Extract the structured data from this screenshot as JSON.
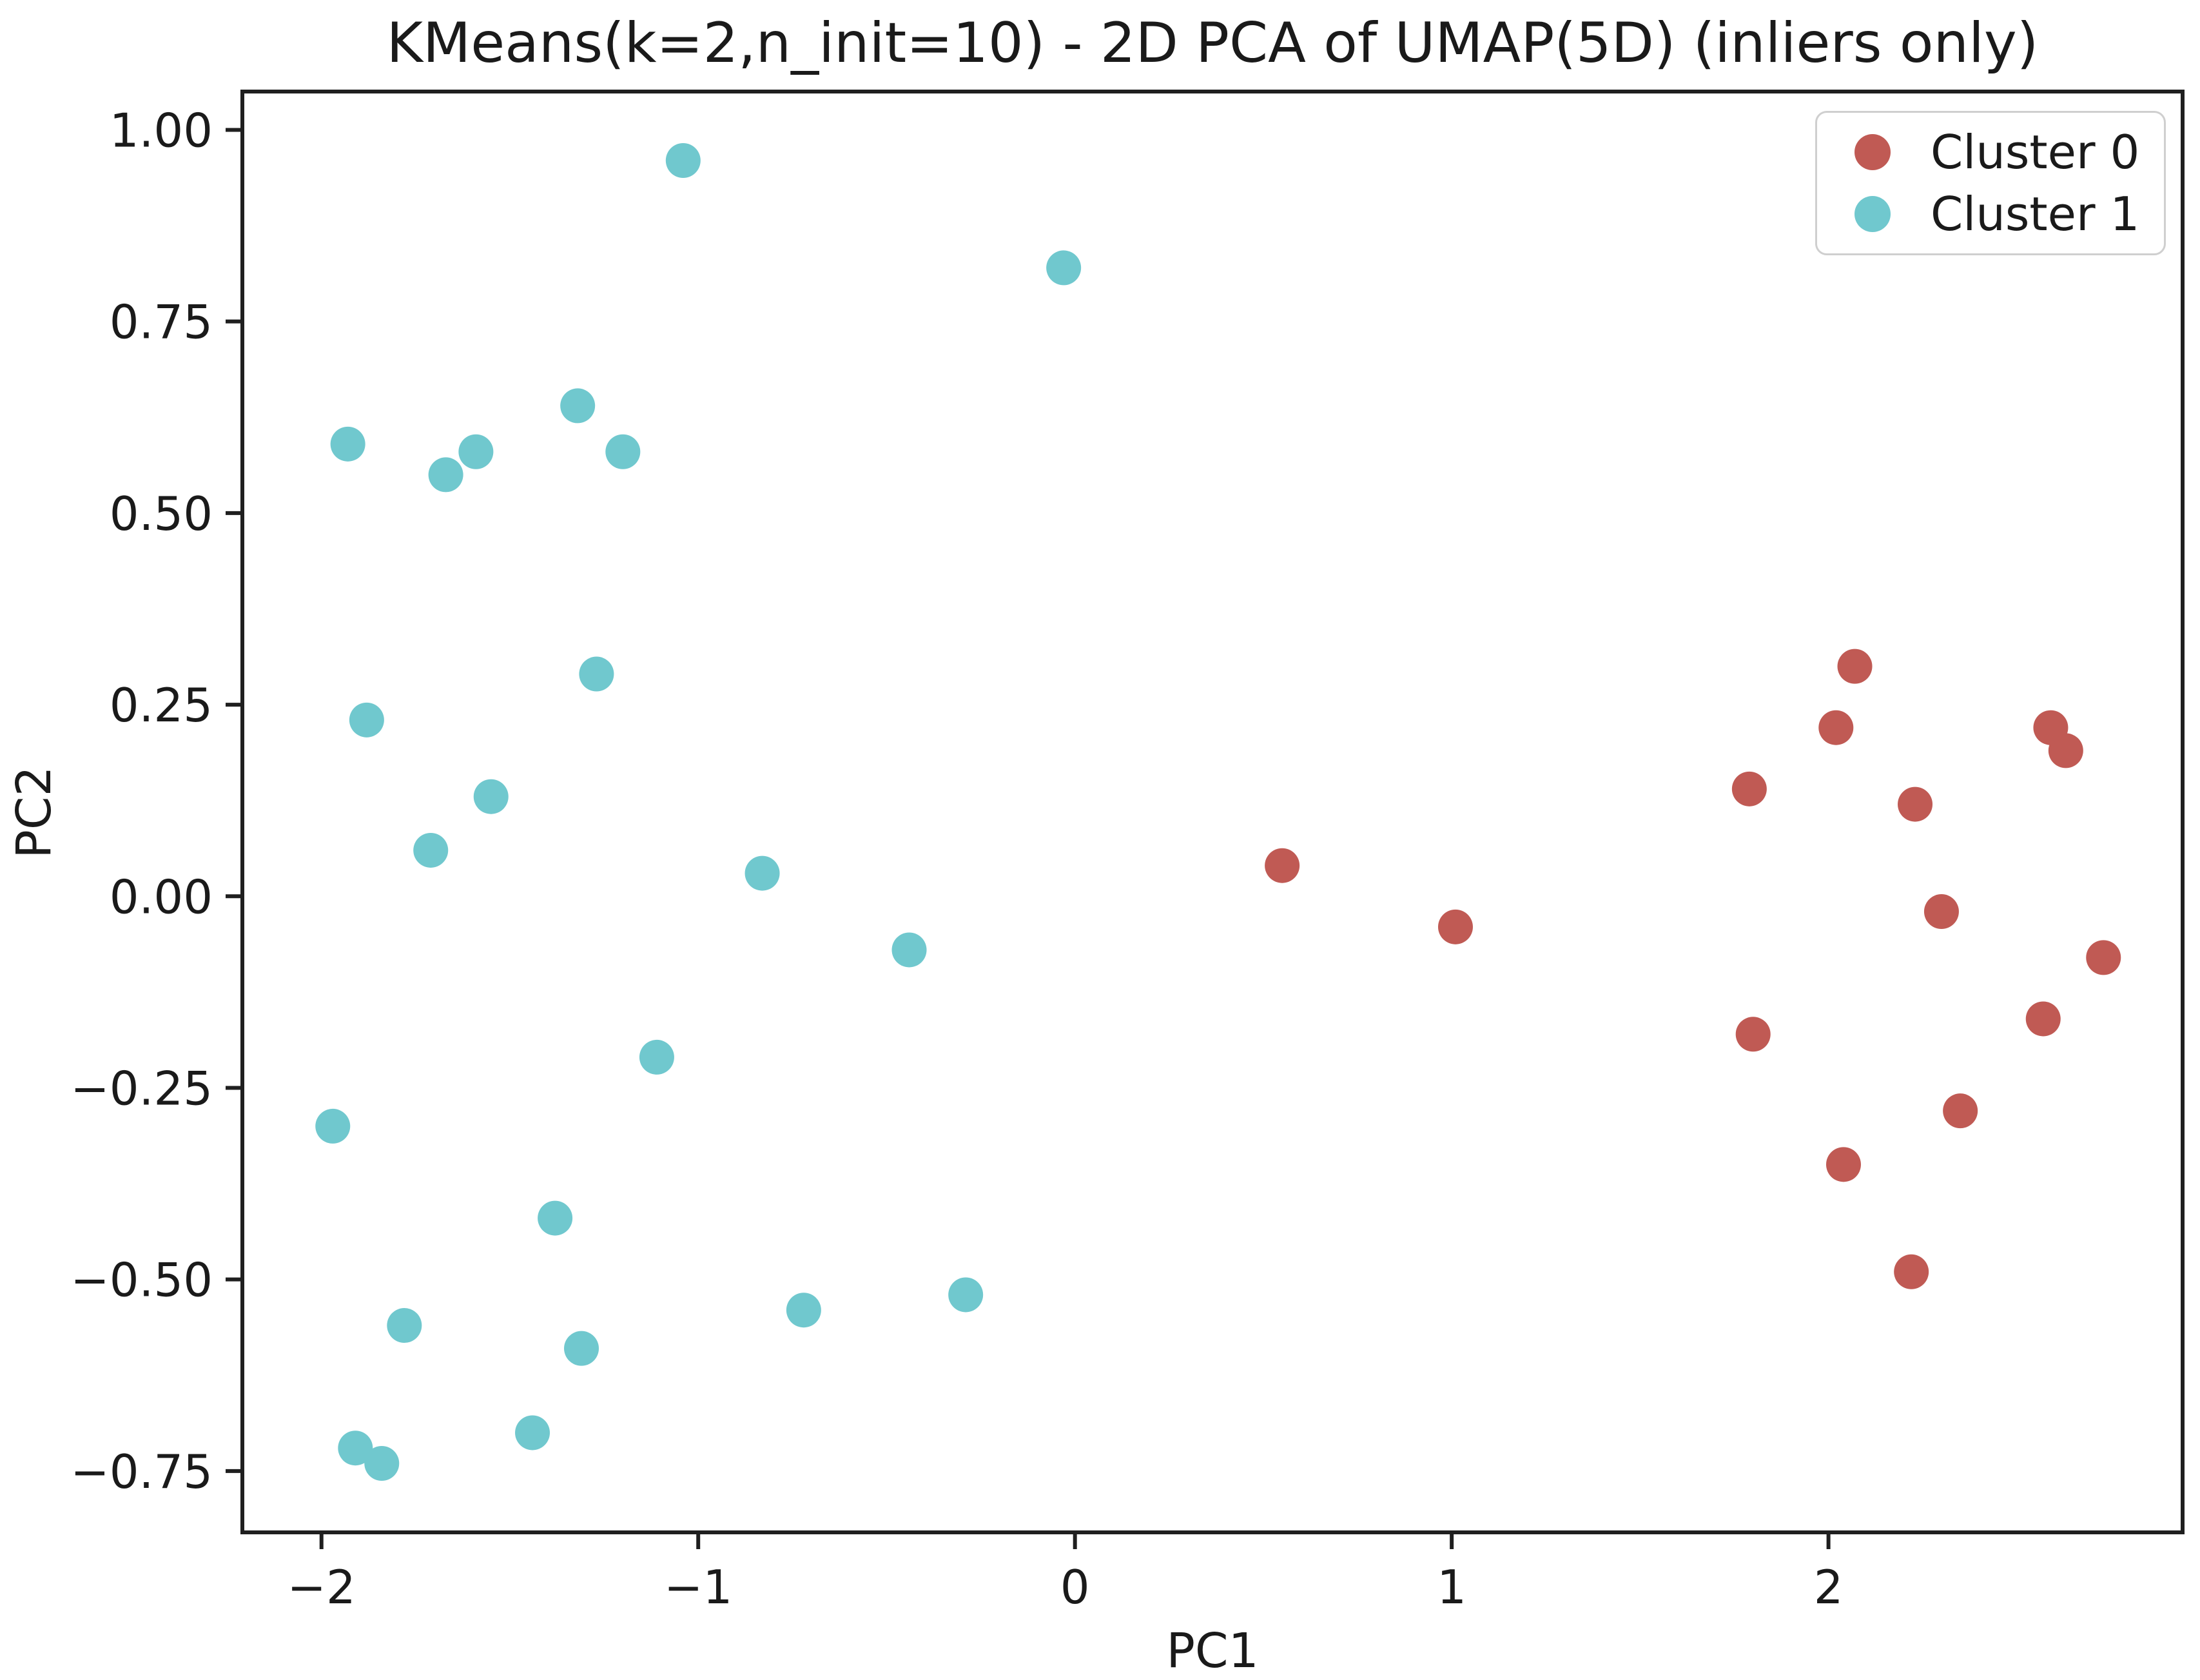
{
  "chart_data": {
    "type": "scatter",
    "title": "KMeans(k=2,n_init=10) - 2D PCA of UMAP(5D) (inliers only)",
    "xlabel": "PC1",
    "ylabel": "PC2",
    "xlim": [
      -2.21,
      2.94
    ],
    "ylim": [
      -0.83,
      1.05
    ],
    "grid": false,
    "legend": {
      "position": "upper right",
      "labels": [
        "Cluster 0",
        "Cluster 1"
      ]
    },
    "x_ticks": [
      {
        "value": -2,
        "label": "−2"
      },
      {
        "value": -1,
        "label": "−1"
      },
      {
        "value": 0,
        "label": "0"
      },
      {
        "value": 1,
        "label": "1"
      },
      {
        "value": 2,
        "label": "2"
      }
    ],
    "y_ticks": [
      {
        "value": 1.0,
        "label": "1.00"
      },
      {
        "value": 0.75,
        "label": "0.75"
      },
      {
        "value": 0.5,
        "label": "0.50"
      },
      {
        "value": 0.25,
        "label": "0.25"
      },
      {
        "value": 0.0,
        "label": "0.00"
      },
      {
        "value": -0.25,
        "label": "−0.25"
      },
      {
        "value": -0.5,
        "label": "−0.50"
      },
      {
        "value": -0.75,
        "label": "−0.75"
      }
    ],
    "series": [
      {
        "name": "Cluster 0",
        "color": "#c05a54",
        "marker": "circle",
        "points": [
          [
            0.55,
            0.04
          ],
          [
            1.01,
            -0.04
          ],
          [
            2.07,
            0.3
          ],
          [
            2.02,
            0.22
          ],
          [
            2.59,
            0.22
          ],
          [
            2.63,
            0.19
          ],
          [
            1.79,
            0.14
          ],
          [
            2.23,
            0.12
          ],
          [
            2.3,
            -0.02
          ],
          [
            2.73,
            -0.08
          ],
          [
            2.57,
            -0.16
          ],
          [
            1.8,
            -0.18
          ],
          [
            2.35,
            -0.28
          ],
          [
            2.04,
            -0.35
          ],
          [
            2.22,
            -0.49
          ]
        ]
      },
      {
        "name": "Cluster 1",
        "color": "#70c8ce",
        "marker": "circle",
        "points": [
          [
            -1.04,
            0.96
          ],
          [
            -0.03,
            0.82
          ],
          [
            -1.93,
            0.59
          ],
          [
            -1.32,
            0.64
          ],
          [
            -1.59,
            0.58
          ],
          [
            -1.67,
            0.55
          ],
          [
            -1.2,
            0.58
          ],
          [
            -1.27,
            0.29
          ],
          [
            -1.88,
            0.23
          ],
          [
            -1.55,
            0.13
          ],
          [
            -1.71,
            0.06
          ],
          [
            -0.83,
            0.03
          ],
          [
            -0.44,
            -0.07
          ],
          [
            -1.11,
            -0.21
          ],
          [
            -1.97,
            -0.3
          ],
          [
            -1.38,
            -0.42
          ],
          [
            -1.78,
            -0.56
          ],
          [
            -0.72,
            -0.54
          ],
          [
            -0.29,
            -0.52
          ],
          [
            -1.31,
            -0.59
          ],
          [
            -1.44,
            -0.7
          ],
          [
            -1.91,
            -0.72
          ],
          [
            -1.84,
            -0.74
          ]
        ]
      }
    ]
  }
}
